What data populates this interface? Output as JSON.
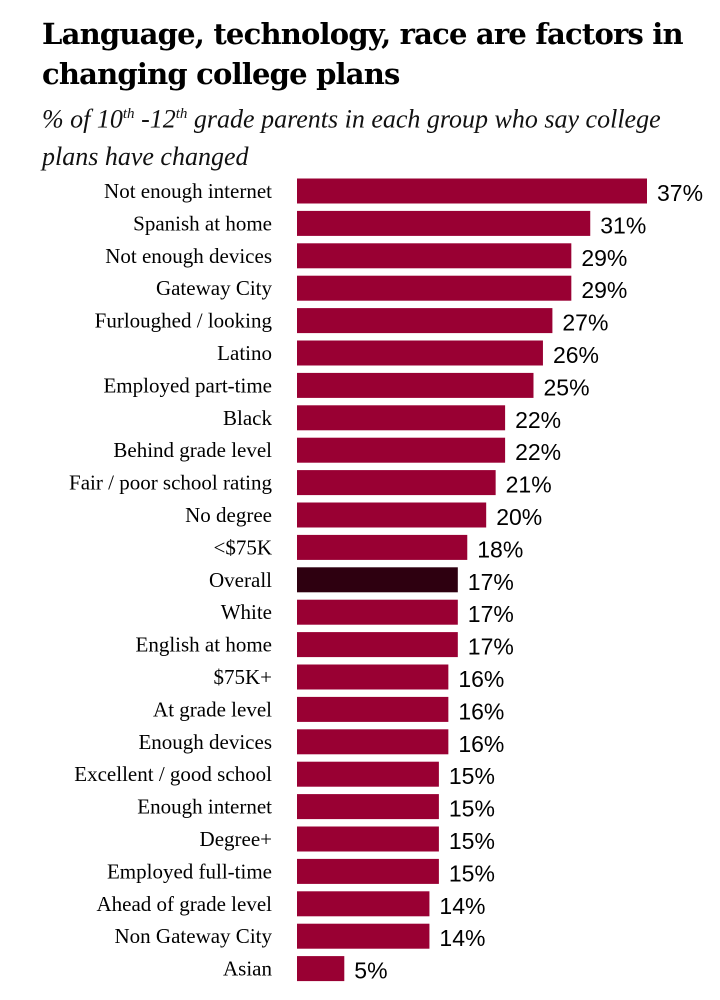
{
  "chart_data": {
    "type": "bar",
    "orientation": "horizontal",
    "title": "Language, technology, race are factors in changing college plans",
    "subtitle": {
      "prefix": "% of 10",
      "sup1": "th",
      "mid": " -12",
      "sup2": "th",
      "suffix": " grade parents in each group who say college plans have changed"
    },
    "xlabel": "",
    "ylabel": "",
    "xlim": [
      0,
      37
    ],
    "grid": false,
    "value_suffix": "%",
    "categories": [
      "Not enough internet",
      "Spanish at home",
      "Not enough devices",
      "Gateway City",
      "Furloughed / looking",
      "Latino",
      "Employed part-time",
      "Black",
      "Behind grade level",
      "Fair / poor school rating",
      "No degree",
      "<$75K",
      "Overall",
      "White",
      "English at home",
      "$75K+",
      "At grade level",
      "Enough devices",
      "Excellent / good school",
      "Enough internet",
      "Degree+",
      "Employed full-time",
      "Ahead of grade level",
      "Non Gateway City",
      "Asian"
    ],
    "values": [
      37,
      31,
      29,
      29,
      27,
      26,
      25,
      22,
      22,
      21,
      20,
      18,
      17,
      17,
      17,
      16,
      16,
      16,
      15,
      15,
      15,
      15,
      14,
      14,
      5
    ],
    "highlight_category": "Overall",
    "colors": {
      "bar": "#990033",
      "highlight": "#2e0010"
    }
  }
}
